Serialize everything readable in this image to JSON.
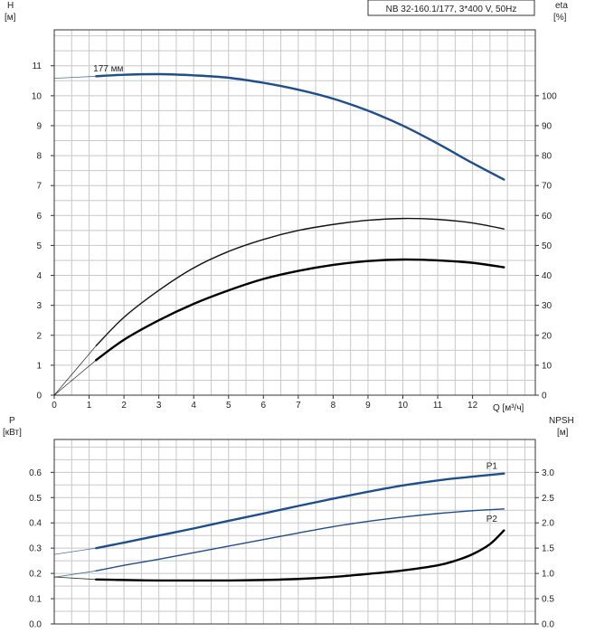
{
  "chart_data": [
    {
      "type": "line",
      "title": "NB 32-160.1/177, 3*400 V, 50Hz",
      "xlabel": "Q [м³/ч]",
      "xlim": [
        0,
        13.8
      ],
      "xticks": [
        0,
        1,
        2,
        3,
        4,
        5,
        6,
        7,
        8,
        9,
        10,
        11,
        12
      ],
      "y_left": {
        "label_line1": "H",
        "label_line2": "[м]",
        "lim": [
          0,
          12.2
        ],
        "ticks": [
          0,
          1,
          2,
          3,
          4,
          5,
          6,
          7,
          8,
          9,
          10,
          11
        ]
      },
      "y_right": {
        "label_line1": "eta",
        "label_line2": "[%]",
        "lim": [
          0,
          122
        ],
        "ticks": [
          0,
          10,
          20,
          30,
          40,
          50,
          60,
          70,
          80,
          90,
          100
        ]
      },
      "grid": true,
      "series": [
        {
          "name": "177 мм",
          "axis": "left",
          "color": "#1f4e8c",
          "x": [
            0,
            1.2,
            2,
            3,
            4,
            5,
            6,
            7,
            8,
            9,
            10,
            11,
            12,
            12.9
          ],
          "y": [
            10.58,
            10.65,
            10.7,
            10.72,
            10.68,
            10.6,
            10.43,
            10.2,
            9.9,
            9.5,
            9.0,
            8.4,
            7.75,
            7.2
          ]
        },
        {
          "name": "",
          "axis": "right",
          "color": "#111111",
          "x": [
            0,
            1.2,
            2,
            3,
            4,
            5,
            6,
            7,
            8,
            9,
            10,
            11,
            12,
            12.9
          ],
          "y": [
            0,
            16.5,
            26,
            35,
            42.5,
            48,
            52,
            55,
            57,
            58.4,
            59,
            58.7,
            57.5,
            55.5
          ]
        },
        {
          "name": "",
          "axis": "left",
          "color": "#000000",
          "x": [
            0,
            1.2,
            2,
            3,
            4,
            5,
            6,
            7,
            8,
            9,
            10,
            11,
            12,
            12.9
          ],
          "y": [
            0,
            1.17,
            1.85,
            2.5,
            3.05,
            3.5,
            3.88,
            4.15,
            4.35,
            4.48,
            4.53,
            4.5,
            4.42,
            4.27
          ]
        }
      ]
    },
    {
      "type": "line",
      "xlim": [
        0,
        13.8
      ],
      "xticks": [
        0,
        1,
        2,
        3,
        4,
        5,
        6,
        7,
        8,
        9,
        10,
        11,
        12
      ],
      "y_left": {
        "label_line1": "P",
        "label_line2": "[кВт]",
        "lim": [
          0,
          0.73
        ],
        "ticks": [
          0.0,
          0.1,
          0.2,
          0.3,
          0.4,
          0.5,
          0.6
        ],
        "tick_labels": [
          "0.0",
          "0.1",
          "0.2",
          "0.3",
          "0.4",
          "0.5",
          "0.6"
        ]
      },
      "y_right": {
        "label_line1": "NPSH",
        "label_line2": "[м]",
        "lim": [
          0,
          3.65
        ],
        "ticks": [
          0.0,
          0.5,
          1.0,
          1.5,
          2.0,
          2.5,
          3.0
        ],
        "tick_labels": [
          "0.0",
          "0.5",
          "1.0",
          "1.5",
          "2.0",
          "2.5",
          "3.0"
        ]
      },
      "grid": true,
      "series": [
        {
          "name": "P1",
          "axis": "left",
          "color": "#1f4e8c",
          "x": [
            0,
            1.2,
            2,
            3,
            4,
            5,
            6,
            7,
            8,
            9,
            10,
            11,
            12,
            12.9
          ],
          "y": [
            0.275,
            0.3,
            0.322,
            0.35,
            0.378,
            0.408,
            0.437,
            0.467,
            0.496,
            0.523,
            0.548,
            0.568,
            0.583,
            0.595
          ]
        },
        {
          "name": "P2",
          "axis": "left",
          "color": "#1f4e8c",
          "x": [
            0,
            1.2,
            2,
            3,
            4,
            5,
            6,
            7,
            8,
            9,
            10,
            11,
            12,
            12.9
          ],
          "y": [
            0.185,
            0.21,
            0.232,
            0.256,
            0.282,
            0.308,
            0.334,
            0.36,
            0.385,
            0.406,
            0.423,
            0.437,
            0.448,
            0.455
          ]
        },
        {
          "name": "",
          "axis": "right",
          "color": "#000000",
          "x": [
            0,
            1.2,
            2,
            3,
            4,
            5,
            6,
            7,
            8,
            9,
            10,
            11,
            11.5,
            12,
            12.5,
            12.9
          ],
          "y": [
            0.93,
            0.88,
            0.87,
            0.86,
            0.86,
            0.86,
            0.87,
            0.89,
            0.93,
            0.99,
            1.06,
            1.16,
            1.25,
            1.38,
            1.58,
            1.85
          ]
        }
      ]
    }
  ]
}
